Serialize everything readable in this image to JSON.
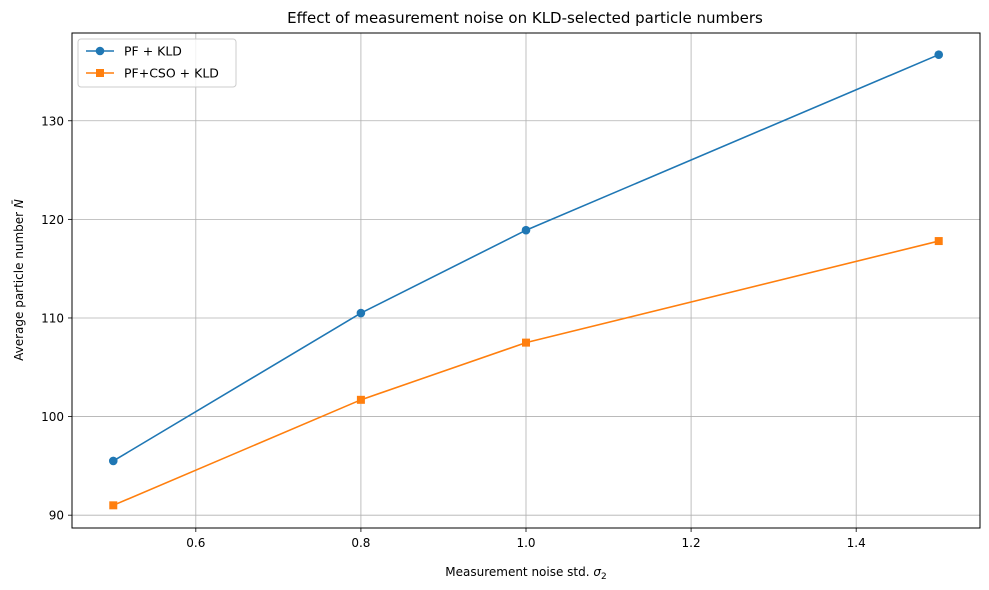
{
  "chart_data": {
    "type": "line",
    "title": "Effect of measurement noise on KLD-selected particle numbers",
    "xlabel_text": "Measurement noise std. ",
    "xlabel_symbol": "σ",
    "xlabel_subscript": "2",
    "ylabel_text": "Average particle number ",
    "ylabel_symbol": "N̄",
    "x": [
      0.5,
      0.8,
      1.0,
      1.5
    ],
    "series": [
      {
        "name": "PF + KLD",
        "values": [
          95.5,
          110.5,
          118.9,
          136.7
        ],
        "color": "#1f77b4",
        "marker": "circle"
      },
      {
        "name": "PF+CSO + KLD",
        "values": [
          91.0,
          101.7,
          107.5,
          117.8
        ],
        "color": "#ff7f0e",
        "marker": "square"
      }
    ],
    "xlim": [
      0.45,
      1.55
    ],
    "ylim": [
      88.7,
      138.9
    ],
    "xticks": [
      0.6,
      0.8,
      1.0,
      1.2,
      1.4
    ],
    "xtick_labels": [
      "0.6",
      "0.8",
      "1.0",
      "1.2",
      "1.4"
    ],
    "yticks": [
      90,
      100,
      110,
      120,
      130
    ],
    "ytick_labels": [
      "90",
      "100",
      "110",
      "120",
      "130"
    ],
    "grid": true,
    "legend_position": "top-left"
  }
}
